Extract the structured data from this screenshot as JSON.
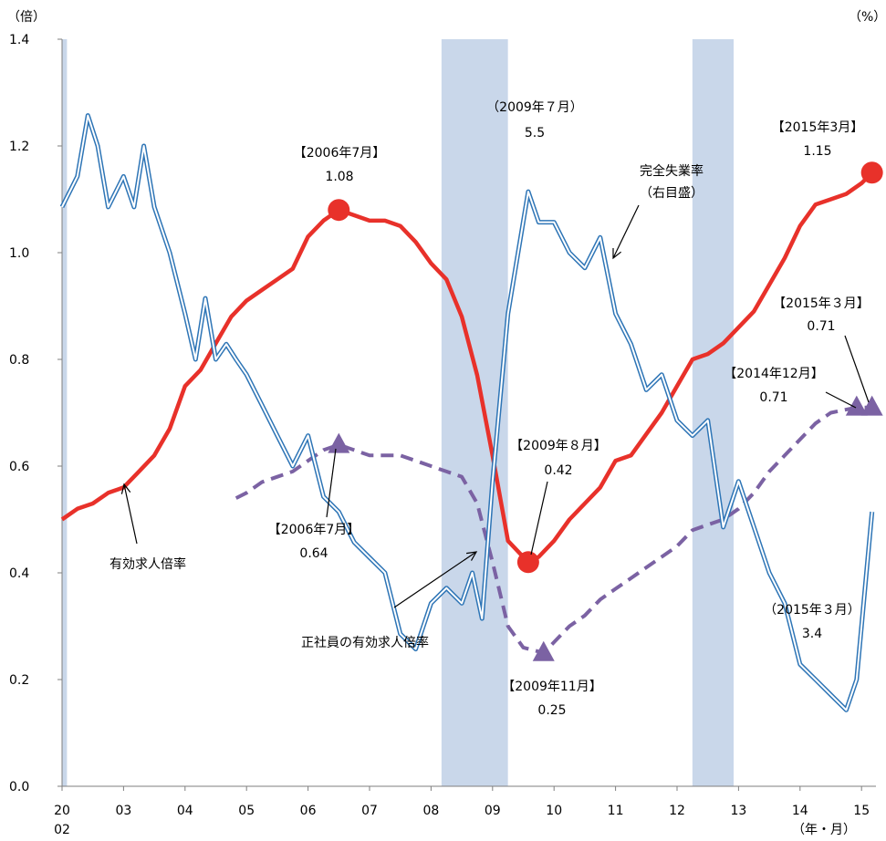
{
  "chart_data": {
    "type": "line",
    "left_axis_unit": "（倍）",
    "right_axis_unit": "（%）",
    "x_axis_unit": "（年・月）",
    "ylim": [
      0.0,
      1.4
    ],
    "y_ticks": [
      "1.4",
      "1.2",
      "1.0",
      "0.8",
      "0.6",
      "0.4",
      "0.2",
      "0.0"
    ],
    "x_tick_labels": [
      {
        "label": "20",
        "sublabel": "02",
        "year": 2002.0
      },
      {
        "label": "03",
        "year": 2003.0
      },
      {
        "label": "04",
        "year": 2004.0
      },
      {
        "label": "05",
        "year": 2005.0
      },
      {
        "label": "06",
        "year": 2006.0
      },
      {
        "label": "07",
        "year": 2007.0
      },
      {
        "label": "08",
        "year": 2008.0
      },
      {
        "label": "09",
        "year": 2009.0
      },
      {
        "label": "10",
        "year": 2010.0
      },
      {
        "label": "11",
        "year": 2011.0
      },
      {
        "label": "12",
        "year": 2012.0
      },
      {
        "label": "13",
        "year": 2013.0
      },
      {
        "label": "14",
        "year": 2014.0
      },
      {
        "label": "15",
        "year": 2015.0
      }
    ],
    "recessions": [
      {
        "start": 2002.0,
        "end": 2002.08
      },
      {
        "start": 2008.17,
        "end": 2009.25
      },
      {
        "start": 2012.25,
        "end": 2012.92
      }
    ],
    "series": [
      {
        "name": "有効求人倍率",
        "axis": "left",
        "color": "#e8312a",
        "points": [
          [
            2002.0,
            0.5
          ],
          [
            2002.25,
            0.52
          ],
          [
            2002.5,
            0.53
          ],
          [
            2002.75,
            0.55
          ],
          [
            2003.0,
            0.56
          ],
          [
            2003.25,
            0.59
          ],
          [
            2003.5,
            0.62
          ],
          [
            2003.75,
            0.67
          ],
          [
            2004.0,
            0.75
          ],
          [
            2004.25,
            0.78
          ],
          [
            2004.5,
            0.83
          ],
          [
            2004.75,
            0.88
          ],
          [
            2005.0,
            0.91
          ],
          [
            2005.25,
            0.93
          ],
          [
            2005.5,
            0.95
          ],
          [
            2005.75,
            0.97
          ],
          [
            2006.0,
            1.03
          ],
          [
            2006.25,
            1.06
          ],
          [
            2006.5,
            1.08
          ],
          [
            2006.75,
            1.07
          ],
          [
            2007.0,
            1.06
          ],
          [
            2007.25,
            1.06
          ],
          [
            2007.5,
            1.05
          ],
          [
            2007.75,
            1.02
          ],
          [
            2008.0,
            0.98
          ],
          [
            2008.25,
            0.95
          ],
          [
            2008.5,
            0.88
          ],
          [
            2008.75,
            0.77
          ],
          [
            2009.0,
            0.62
          ],
          [
            2009.25,
            0.46
          ],
          [
            2009.58,
            0.42
          ],
          [
            2009.75,
            0.43
          ],
          [
            2010.0,
            0.46
          ],
          [
            2010.25,
            0.5
          ],
          [
            2010.5,
            0.53
          ],
          [
            2010.75,
            0.56
          ],
          [
            2011.0,
            0.61
          ],
          [
            2011.25,
            0.62
          ],
          [
            2011.5,
            0.66
          ],
          [
            2011.75,
            0.7
          ],
          [
            2012.0,
            0.75
          ],
          [
            2012.25,
            0.8
          ],
          [
            2012.5,
            0.81
          ],
          [
            2012.75,
            0.83
          ],
          [
            2013.0,
            0.86
          ],
          [
            2013.25,
            0.89
          ],
          [
            2013.5,
            0.94
          ],
          [
            2013.75,
            0.99
          ],
          [
            2014.0,
            1.05
          ],
          [
            2014.25,
            1.09
          ],
          [
            2014.5,
            1.1
          ],
          [
            2014.75,
            1.11
          ],
          [
            2015.0,
            1.13
          ],
          [
            2015.17,
            1.15
          ]
        ]
      },
      {
        "name": "正社員の有効求人倍率",
        "axis": "left",
        "color": "#7b62a3",
        "points": [
          [
            2004.83,
            0.54
          ],
          [
            2005.0,
            0.55
          ],
          [
            2005.25,
            0.57
          ],
          [
            2005.5,
            0.58
          ],
          [
            2005.75,
            0.59
          ],
          [
            2006.0,
            0.61
          ],
          [
            2006.25,
            0.63
          ],
          [
            2006.5,
            0.64
          ],
          [
            2006.75,
            0.63
          ],
          [
            2007.0,
            0.62
          ],
          [
            2007.25,
            0.62
          ],
          [
            2007.5,
            0.62
          ],
          [
            2007.75,
            0.61
          ],
          [
            2008.0,
            0.6
          ],
          [
            2008.25,
            0.59
          ],
          [
            2008.5,
            0.58
          ],
          [
            2008.75,
            0.53
          ],
          [
            2009.0,
            0.42
          ],
          [
            2009.25,
            0.3
          ],
          [
            2009.5,
            0.26
          ],
          [
            2009.83,
            0.25
          ],
          [
            2010.0,
            0.27
          ],
          [
            2010.25,
            0.3
          ],
          [
            2010.5,
            0.32
          ],
          [
            2010.75,
            0.35
          ],
          [
            2011.0,
            0.37
          ],
          [
            2011.25,
            0.39
          ],
          [
            2011.5,
            0.41
          ],
          [
            2011.75,
            0.43
          ],
          [
            2012.0,
            0.45
          ],
          [
            2012.25,
            0.48
          ],
          [
            2012.5,
            0.49
          ],
          [
            2012.75,
            0.5
          ],
          [
            2013.0,
            0.52
          ],
          [
            2013.25,
            0.55
          ],
          [
            2013.5,
            0.59
          ],
          [
            2013.75,
            0.62
          ],
          [
            2014.0,
            0.65
          ],
          [
            2014.25,
            0.68
          ],
          [
            2014.5,
            0.7
          ],
          [
            2014.92,
            0.71
          ],
          [
            2015.17,
            0.71
          ]
        ]
      },
      {
        "name": "完全失業率",
        "axis": "right",
        "color": "#2e75b6",
        "points": [
          [
            2002.0,
            5.4
          ],
          [
            2002.25,
            5.6
          ],
          [
            2002.42,
            6.0
          ],
          [
            2002.58,
            5.8
          ],
          [
            2002.75,
            5.4
          ],
          [
            2003.0,
            5.6
          ],
          [
            2003.17,
            5.4
          ],
          [
            2003.33,
            5.8
          ],
          [
            2003.5,
            5.4
          ],
          [
            2003.75,
            5.1
          ],
          [
            2004.0,
            4.7
          ],
          [
            2004.17,
            4.4
          ],
          [
            2004.33,
            4.8
          ],
          [
            2004.5,
            4.4
          ],
          [
            2004.67,
            4.5
          ],
          [
            2004.83,
            4.4
          ],
          [
            2005.0,
            4.3
          ],
          [
            2005.25,
            4.1
          ],
          [
            2005.5,
            3.9
          ],
          [
            2005.75,
            3.7
          ],
          [
            2006.0,
            3.9
          ],
          [
            2006.25,
            3.5
          ],
          [
            2006.5,
            3.4
          ],
          [
            2006.75,
            3.2
          ],
          [
            2007.0,
            3.1
          ],
          [
            2007.25,
            3.0
          ],
          [
            2007.5,
            2.6
          ],
          [
            2007.75,
            2.5
          ],
          [
            2008.0,
            2.8
          ],
          [
            2008.25,
            2.9
          ],
          [
            2008.5,
            2.8
          ],
          [
            2008.67,
            3.0
          ],
          [
            2008.83,
            2.7
          ],
          [
            2009.0,
            3.6
          ],
          [
            2009.25,
            4.7
          ],
          [
            2009.58,
            5.5
          ],
          [
            2009.75,
            5.3
          ],
          [
            2010.0,
            5.3
          ],
          [
            2010.25,
            5.1
          ],
          [
            2010.5,
            5.0
          ],
          [
            2010.75,
            5.2
          ],
          [
            2011.0,
            4.7
          ],
          [
            2011.25,
            4.5
          ],
          [
            2011.5,
            4.2
          ],
          [
            2011.75,
            4.3
          ],
          [
            2012.0,
            4.0
          ],
          [
            2012.25,
            3.9
          ],
          [
            2012.5,
            4.0
          ],
          [
            2012.75,
            3.3
          ],
          [
            2013.0,
            3.6
          ],
          [
            2013.25,
            3.3
          ],
          [
            2013.5,
            3.0
          ],
          [
            2013.75,
            2.8
          ],
          [
            2014.0,
            2.4
          ],
          [
            2014.25,
            2.3
          ],
          [
            2014.5,
            2.2
          ],
          [
            2014.75,
            2.1
          ],
          [
            2014.92,
            2.3
          ],
          [
            2015.17,
            3.4
          ]
        ]
      }
    ],
    "annotations": [
      {
        "id": "peak-2006",
        "line1": "【2006年7月】",
        "line2": "1.08"
      },
      {
        "id": "unemp-2009",
        "line1": "（2009年７月）",
        "line2": "5.5"
      },
      {
        "id": "latest-2015",
        "line1": "【2015年3月】",
        "line2": "1.15"
      },
      {
        "id": "unemp-label",
        "line1": "完全失業率",
        "line2": "（右目盛）"
      },
      {
        "id": "seishain-2015",
        "line1": "【2015年３月】",
        "line2": "0.71"
      },
      {
        "id": "seishain-2014",
        "line1": "【2014年12月】",
        "line2": "0.71"
      },
      {
        "id": "trough-2009",
        "line1": "【2009年８月】",
        "line2": "0.42"
      },
      {
        "id": "seishain-2006",
        "line1": "【2006年7月】",
        "line2": "0.64"
      },
      {
        "id": "ratio-label",
        "line1": "有効求人倍率"
      },
      {
        "id": "seishain-label",
        "line1": "正社員の有効求人倍率"
      },
      {
        "id": "seishain-2009",
        "line1": "【2009年11月】",
        "line2": "0.25"
      },
      {
        "id": "unemp-2015",
        "line1": "（2015年３月）",
        "line2": "3.4"
      }
    ]
  }
}
